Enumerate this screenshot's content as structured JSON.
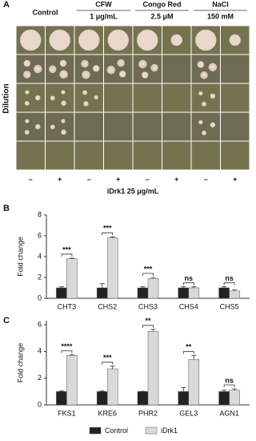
{
  "panel_a": {
    "label": "A",
    "headers": [
      {
        "name": "Control"
      },
      {
        "name": "CFW",
        "conc": "1 μg/mL"
      },
      {
        "name": "Congo Red",
        "conc": "2.5 μM"
      },
      {
        "name": "NaCl",
        "conc": "150 mM"
      }
    ],
    "row_label": "Dilution",
    "signs": [
      "–",
      "+",
      "–",
      "+",
      "–",
      "+",
      "–",
      "+"
    ],
    "treatment": "iDrk1 25 μg/mL"
  },
  "chart_data": [
    {
      "type": "bar",
      "label": "B",
      "ylabel": "Fold change",
      "categories": [
        "CHT3",
        "CHS2",
        "CHS3",
        "CHS4",
        "CHS5"
      ],
      "series": [
        {
          "color": "#222222",
          "values": [
            1.0,
            1.0,
            1.0,
            1.0,
            1.0
          ],
          "errors": [
            0.1,
            0.4,
            0.1,
            0.1,
            0.1
          ]
        },
        {
          "color": "#d9d9d9",
          "values": [
            3.8,
            5.8,
            1.9,
            1.0,
            0.7
          ],
          "errors": [
            0.05,
            0.1,
            0.1,
            0.1,
            0.1
          ]
        }
      ],
      "annotations": [
        "***",
        "***",
        "***",
        "ns",
        "ns"
      ],
      "ylim": [
        0,
        8
      ],
      "yticks": [
        0,
        2,
        4,
        6,
        8
      ]
    },
    {
      "type": "bar",
      "label": "C",
      "ylabel": "Fold change",
      "categories": [
        "FKS1",
        "KRE6",
        "PHR2",
        "GEL3",
        "AGN1"
      ],
      "series": [
        {
          "name": "Control",
          "color": "#222222",
          "values": [
            1.0,
            1.0,
            1.0,
            1.0,
            1.0
          ],
          "errors": [
            0.05,
            0.05,
            0.02,
            0.3,
            0.1
          ]
        },
        {
          "name": "iDrk1",
          "color": "#d9d9d9",
          "values": [
            3.7,
            2.7,
            5.5,
            3.4,
            1.1
          ],
          "errors": [
            0.05,
            0.2,
            0.15,
            0.3,
            0.1
          ]
        }
      ],
      "annotations": [
        "****",
        "***",
        "**",
        "**",
        "ns"
      ],
      "ylim": [
        0,
        6.3
      ],
      "yticks": [
        0,
        2,
        4,
        6
      ],
      "legend": "bottom"
    }
  ]
}
